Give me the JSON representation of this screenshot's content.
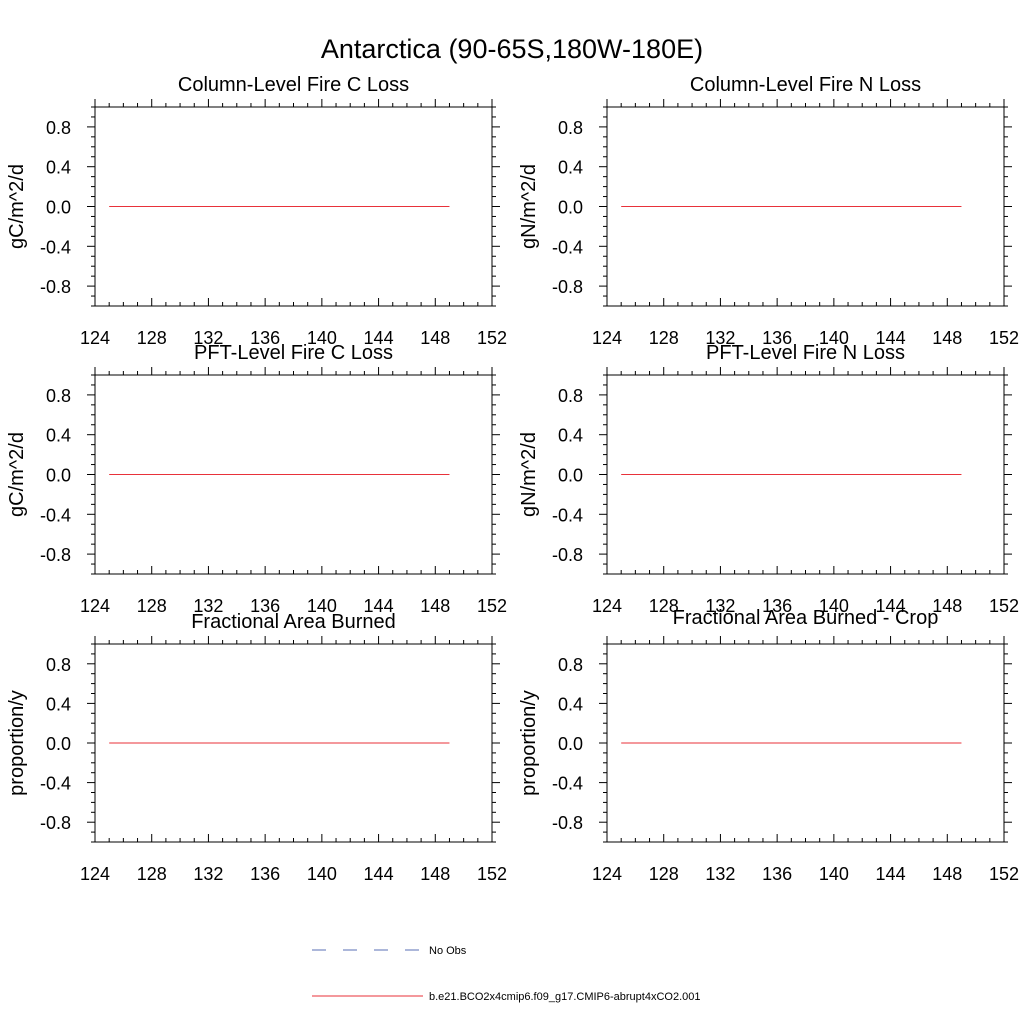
{
  "figure": {
    "title": "Antarctica (90-65S,180W-180E)"
  },
  "colors": {
    "model_line": "#e8323a",
    "obs_line": "#5a6fb4",
    "frame": "#000000"
  },
  "legend": {
    "placement": "bottom-center",
    "entries": [
      {
        "label": "No Obs",
        "style": "dashed",
        "color": "#5a6fb4"
      },
      {
        "label": "b.e21.BCO2x4cmip6.f09_g17.CMIP6-abrupt4xCO2.001",
        "style": "solid",
        "color": "#e8323a"
      }
    ]
  },
  "chart_data": [
    {
      "type": "line",
      "title": "Column-Level Fire C Loss",
      "ylabel": "gC/m^2/d",
      "xlim": [
        124,
        152
      ],
      "ylim": [
        -1,
        1
      ],
      "xticks": [
        124,
        128,
        132,
        136,
        140,
        144,
        148,
        152
      ],
      "yticks": [
        0.8,
        0.4,
        0.0,
        -0.4,
        -0.8
      ],
      "ytick_labels": [
        "0.8",
        "0.4",
        "0.0",
        "-0.4",
        "-0.8"
      ],
      "series": [
        {
          "x": [
            125,
            149
          ],
          "y": [
            0,
            0
          ]
        }
      ]
    },
    {
      "type": "line",
      "title": "Column-Level Fire N Loss",
      "ylabel": "gN/m^2/d",
      "xlim": [
        124,
        152
      ],
      "ylim": [
        -1,
        1
      ],
      "xticks": [
        124,
        128,
        132,
        136,
        140,
        144,
        148,
        152
      ],
      "yticks": [
        0.8,
        0.4,
        0.0,
        -0.4,
        -0.8
      ],
      "ytick_labels": [
        "0.8",
        "0.4",
        "0.0",
        "-0.4",
        "-0.8"
      ],
      "series": [
        {
          "x": [
            125,
            149
          ],
          "y": [
            0,
            0
          ]
        }
      ]
    },
    {
      "type": "line",
      "title": "PFT-Level Fire C Loss",
      "ylabel": "gC/m^2/d",
      "xlim": [
        124,
        152
      ],
      "ylim": [
        -1,
        1
      ],
      "xticks": [
        124,
        128,
        132,
        136,
        140,
        144,
        148,
        152
      ],
      "yticks": [
        0.8,
        0.4,
        0.0,
        -0.4,
        -0.8
      ],
      "ytick_labels": [
        "0.8",
        "0.4",
        "0.0",
        "-0.4",
        "-0.8"
      ],
      "series": [
        {
          "x": [
            125,
            149
          ],
          "y": [
            0,
            0
          ]
        }
      ]
    },
    {
      "type": "line",
      "title": "PFT-Level Fire N Loss",
      "ylabel": "gN/m^2/d",
      "xlim": [
        124,
        152
      ],
      "ylim": [
        -1,
        1
      ],
      "xticks": [
        124,
        128,
        132,
        136,
        140,
        144,
        148,
        152
      ],
      "yticks": [
        0.8,
        0.4,
        0.0,
        -0.4,
        -0.8
      ],
      "ytick_labels": [
        "0.8",
        "0.4",
        "0.0",
        "-0.4",
        "-0.8"
      ],
      "series": [
        {
          "x": [
            125,
            149
          ],
          "y": [
            0,
            0
          ]
        }
      ]
    },
    {
      "type": "line",
      "title": "Fractional Area Burned",
      "ylabel": "proportion/y",
      "xlim": [
        124,
        152
      ],
      "ylim": [
        -1,
        1
      ],
      "xticks": [
        124,
        128,
        132,
        136,
        140,
        144,
        148,
        152
      ],
      "yticks": [
        0.8,
        0.4,
        0.0,
        -0.4,
        -0.8
      ],
      "ytick_labels": [
        "0.8",
        "0.4",
        "0.0",
        "-0.4",
        "-0.8"
      ],
      "series": [
        {
          "x": [
            125,
            149
          ],
          "y": [
            0,
            0
          ]
        }
      ]
    },
    {
      "type": "line",
      "title": "Fractional Area Burned - Crop",
      "ylabel": "proportion/y",
      "xlim": [
        124,
        152
      ],
      "ylim": [
        -1,
        1
      ],
      "xticks": [
        124,
        128,
        132,
        136,
        140,
        144,
        148,
        152
      ],
      "yticks": [
        0.8,
        0.4,
        0.0,
        -0.4,
        -0.8
      ],
      "ytick_labels": [
        "0.8",
        "0.4",
        "0.0",
        "-0.4",
        "-0.8"
      ],
      "series": [
        {
          "x": [
            125,
            149
          ],
          "y": [
            0,
            0
          ]
        }
      ]
    }
  ]
}
